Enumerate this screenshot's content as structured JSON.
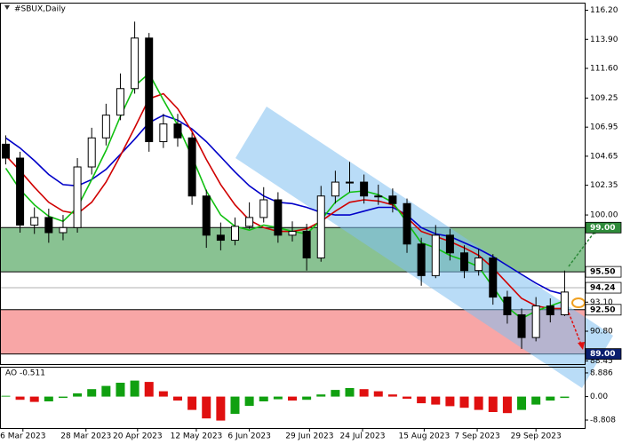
{
  "chart_data": [
    {
      "type": "candlestick",
      "title": "#SBUX,Daily",
      "x": [
        0,
        1,
        2,
        3,
        4,
        5,
        6,
        7,
        8,
        9,
        10,
        11,
        12,
        13,
        14,
        15,
        16,
        17,
        18,
        19,
        20,
        21,
        22,
        23,
        24,
        25,
        26,
        27,
        28,
        29,
        30,
        31,
        32,
        33,
        34,
        35,
        36,
        37,
        38,
        39
      ],
      "open": [
        105.6,
        104.5,
        99.2,
        99.8,
        98.6,
        99.0,
        103.8,
        106.1,
        107.9,
        110.0,
        114.0,
        105.8,
        107.2,
        106.1,
        101.5,
        98.4,
        98.0,
        99.1,
        99.8,
        101.2,
        98.4,
        98.7,
        96.6,
        101.5,
        102.6,
        102.6,
        101.5,
        101.5,
        100.9,
        97.7,
        95.2,
        98.4,
        97.0,
        95.6,
        96.6,
        93.5,
        92.1,
        90.3,
        92.8,
        92.1
      ],
      "high": [
        106.3,
        105.0,
        100.6,
        100.5,
        100.0,
        104.5,
        106.9,
        108.8,
        111.2,
        115.3,
        114.4,
        108.0,
        108.0,
        106.5,
        102.0,
        99.4,
        99.8,
        101.0,
        102.2,
        101.8,
        99.5,
        99.3,
        102.3,
        103.5,
        104.2,
        103.2,
        102.4,
        102.1,
        101.3,
        98.2,
        99.2,
        98.9,
        97.6,
        97.3,
        96.9,
        94.0,
        92.6,
        93.5,
        93.4,
        95.6
      ],
      "low": [
        104.0,
        98.6,
        98.5,
        97.8,
        98.0,
        98.6,
        103.2,
        105.5,
        107.5,
        109.6,
        105.0,
        105.3,
        105.4,
        100.8,
        97.4,
        97.2,
        97.6,
        98.9,
        99.4,
        97.8,
        97.9,
        95.6,
        96.3,
        100.9,
        101.8,
        100.9,
        100.8,
        100.2,
        97.0,
        94.4,
        95.0,
        96.4,
        95.0,
        95.2,
        92.9,
        91.4,
        89.4,
        90.0,
        91.5,
        92.0
      ],
      "close": [
        104.5,
        99.2,
        99.8,
        98.6,
        99.0,
        103.8,
        106.1,
        107.9,
        110.0,
        114.0,
        105.8,
        107.2,
        106.1,
        101.5,
        98.4,
        98.0,
        99.1,
        99.8,
        101.2,
        98.4,
        98.7,
        96.6,
        101.5,
        102.6,
        102.6,
        101.5,
        101.5,
        100.9,
        97.7,
        95.2,
        98.4,
        97.0,
        95.6,
        96.6,
        93.5,
        92.1,
        90.3,
        92.8,
        92.1,
        93.9
      ],
      "up_color": "#ffffff",
      "down_color": "#000000",
      "lines": [
        {
          "color": "#0000c8",
          "values": [
            106.1,
            105.3,
            104.3,
            103.2,
            102.4,
            102.3,
            102.8,
            103.6,
            104.8,
            106.0,
            107.3,
            107.9,
            107.5,
            106.8,
            105.8,
            104.6,
            103.4,
            102.3,
            101.5,
            101.0,
            100.9,
            100.6,
            100.2,
            100.0,
            100.0,
            100.3,
            100.6,
            100.6,
            100.0,
            99.0,
            98.5,
            98.3,
            97.8,
            97.3,
            96.7,
            96.0,
            95.3,
            94.6,
            94.0,
            93.7
          ]
        },
        {
          "color": "#d00000",
          "values": [
            104.7,
            103.5,
            102.2,
            101.0,
            100.3,
            100.1,
            101.0,
            102.6,
            104.7,
            106.9,
            109.2,
            109.6,
            108.4,
            106.6,
            104.4,
            102.4,
            100.8,
            99.6,
            99.0,
            98.7,
            98.7,
            98.9,
            99.5,
            100.3,
            101.0,
            101.2,
            101.1,
            100.8,
            99.8,
            98.7,
            98.3,
            97.9,
            97.4,
            96.8,
            95.8,
            94.6,
            93.4,
            92.8,
            92.6,
            92.6
          ]
        },
        {
          "color": "#10c010",
          "values": [
            103.7,
            102.0,
            100.8,
            99.9,
            99.5,
            100.6,
            102.8,
            105.1,
            107.8,
            110.2,
            111.2,
            109.1,
            107.1,
            104.6,
            101.9,
            100.0,
            99.1,
            98.8,
            99.2,
            99.0,
            98.7,
            98.5,
            99.6,
            101.0,
            101.8,
            101.9,
            101.6,
            101.0,
            99.4,
            97.8,
            97.4,
            96.8,
            96.4,
            95.9,
            94.3,
            92.7,
            91.8,
            92.4,
            92.8,
            93.2
          ]
        }
      ],
      "zones": [
        {
          "from": 95.5,
          "to": 99.0,
          "color": "#3a9a4a"
        },
        {
          "from": 89.0,
          "to": 92.5,
          "color": "#f46a6a"
        }
      ],
      "levels": [
        {
          "value": 99.0,
          "label": "99.00",
          "line_color": "#000000",
          "tag_color": "#2e8b3a",
          "text_color": "#ffffff"
        },
        {
          "value": 95.5,
          "label": "95.50",
          "line_color": "#000000",
          "tag_color": "#ffffff",
          "text_color": "#000000"
        },
        {
          "value": 94.24,
          "label": "94.24",
          "line_color": "#b0b0b0",
          "tag_color": "#ffffff",
          "text_color": "#000000"
        },
        {
          "value": 92.5,
          "label": "92.50",
          "line_color": "#000000",
          "tag_color": "#ffffff",
          "text_color": "#000000"
        },
        {
          "value": 89.0,
          "label": "89.00",
          "line_color": "#000000",
          "tag_color": "#0a1e6e",
          "text_color": "#ffffff"
        }
      ],
      "xlim": [
        -0.4,
        40.4
      ],
      "ylim": [
        88.2,
        116.8
      ],
      "yticks": [
        {
          "value": 116.2,
          "label": "116.20"
        },
        {
          "value": 113.9,
          "label": "113.90"
        },
        {
          "value": 111.6,
          "label": "111.60"
        },
        {
          "value": 109.25,
          "label": "109.25"
        },
        {
          "value": 106.95,
          "label": "106.95"
        },
        {
          "value": 104.65,
          "label": "104.65"
        },
        {
          "value": 102.35,
          "label": "102.35"
        },
        {
          "value": 100.0,
          "label": "100.00"
        },
        {
          "value": 93.1,
          "label": "93.10"
        },
        {
          "value": 90.8,
          "label": "90.80"
        },
        88.45
      ],
      "xticks": [
        {
          "value": 1.2,
          "label": "6 Mar 2023"
        },
        {
          "value": 5.6,
          "label": "28 Mar 2023"
        },
        {
          "value": 9.2,
          "label": "20 Apr 2023"
        },
        {
          "value": 13.3,
          "label": "12 May 2023"
        },
        {
          "value": 17.0,
          "label": "6 Jun 2023"
        },
        {
          "value": 21.2,
          "label": "29 Jun 2023"
        },
        {
          "value": 24.9,
          "label": "24 Jul 2023"
        },
        {
          "value": 29.2,
          "label": "15 Aug 2023"
        },
        {
          "value": 32.9,
          "label": "7 Sep 2023"
        },
        {
          "value": 37.0,
          "label": "29 Sep 2023"
        }
      ]
    },
    {
      "type": "bar",
      "title": "AO -0.511",
      "values": [
        0.3,
        -1.2,
        -2.0,
        -1.8,
        -0.5,
        1.2,
        2.8,
        4.0,
        5.2,
        6.0,
        5.5,
        2.0,
        -1.5,
        -5.0,
        -8.2,
        -9.0,
        -6.5,
        -3.5,
        -1.8,
        -1.0,
        -1.5,
        -1.2,
        0.8,
        2.5,
        3.2,
        2.8,
        2.0,
        0.8,
        -0.8,
        -2.5,
        -3.0,
        -3.6,
        -4.2,
        -5.0,
        -5.8,
        -6.2,
        -5.0,
        -3.0,
        -1.5,
        -0.511
      ],
      "up_color": "#10a010",
      "down_color": "#e01010",
      "xlim": [
        -0.4,
        40.4
      ],
      "ylim": [
        -11.8,
        11.2
      ],
      "yticks": [
        8.886,
        {
          "value": 0,
          "label": "0.00"
        },
        -8.808
      ]
    }
  ]
}
